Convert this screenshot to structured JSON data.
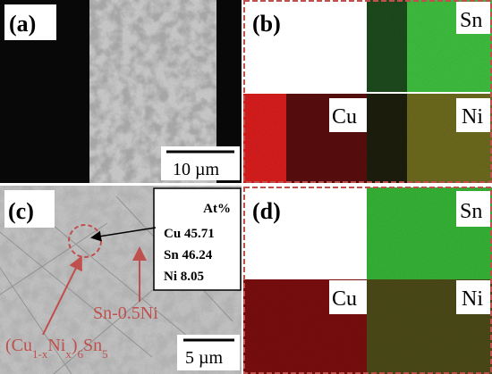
{
  "panels": {
    "a": {
      "label": "(a)",
      "scale_bar": "10 µm"
    },
    "b": {
      "label": "(b)",
      "maps": [
        "Sn",
        "Cu",
        "Ni"
      ]
    },
    "c": {
      "label": "(c)",
      "table": {
        "header": "At%",
        "rows": [
          {
            "element": "Cu",
            "value": 45.71
          },
          {
            "element": "Sn",
            "value": 46.24
          },
          {
            "element": "Ni",
            "value": 8.05
          }
        ]
      },
      "matrix_label": "Sn-0.5Ni",
      "phase_label": [
        {
          "t": "(Cu"
        },
        {
          "sub": "1-x"
        },
        {
          "t": "Ni"
        },
        {
          "sub": "x"
        },
        {
          "t": ")"
        },
        {
          "sub": "6"
        },
        {
          "t": "Sn"
        },
        {
          "sub": "5"
        }
      ],
      "scale_bar": "5 µm"
    },
    "d": {
      "label": "(d)",
      "maps": [
        "Sn",
        "Cu",
        "Ni"
      ]
    }
  }
}
